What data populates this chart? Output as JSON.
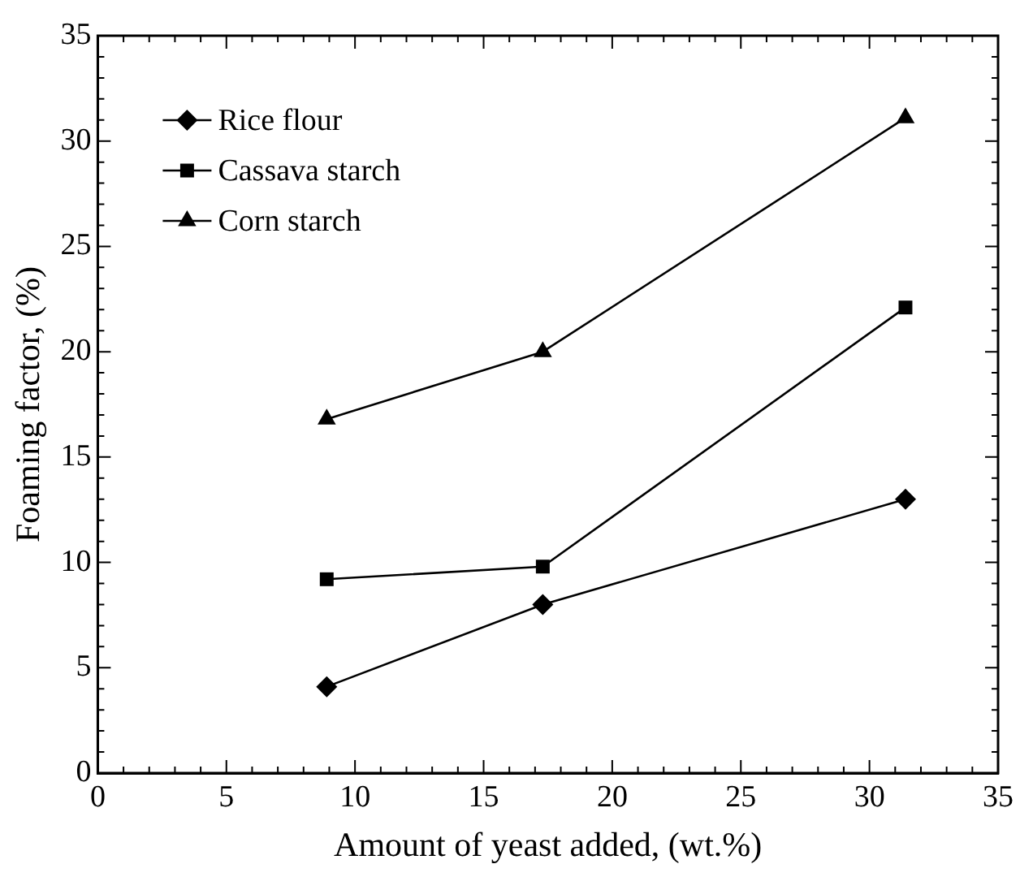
{
  "chart_data": {
    "type": "line",
    "xlabel": "Amount of yeast added, (wt.%)",
    "ylabel": "Foaming factor, (%)",
    "x": [
      8.9,
      17.3,
      31.4
    ],
    "series": [
      {
        "name": "Rice flour",
        "color": "#000000",
        "marker": "diamond",
        "values": [
          4.1,
          8.0,
          13.0
        ]
      },
      {
        "name": "Cassava starch",
        "color": "#000000",
        "marker": "square",
        "values": [
          9.2,
          9.8,
          22.1
        ]
      },
      {
        "name": "Corn starch",
        "color": "#000000",
        "marker": "triangle",
        "values": [
          16.8,
          20.0,
          31.1
        ]
      }
    ],
    "xlim": [
      0,
      35
    ],
    "ylim": [
      0,
      35
    ],
    "xticks": [
      0,
      {
        "value": 1,
        "label": null
      },
      {
        "value": 2,
        "label": null
      },
      {
        "value": 3,
        "label": null
      },
      {
        "value": 4,
        "label": null
      },
      5,
      {
        "value": 6,
        "label": null
      },
      {
        "value": 7,
        "label": null
      },
      {
        "value": 8,
        "label": null
      },
      {
        "value": 9,
        "label": null
      },
      10,
      {
        "value": 11,
        "label": null
      },
      {
        "value": 12,
        "label": null
      },
      {
        "value": 13,
        "label": null
      },
      {
        "value": 14,
        "label": null
      },
      15,
      {
        "value": 16,
        "label": null
      },
      {
        "value": 17,
        "label": null
      },
      {
        "value": 18,
        "label": null
      },
      {
        "value": 19,
        "label": null
      },
      20,
      {
        "value": 21,
        "label": null
      },
      {
        "value": 22,
        "label": null
      },
      {
        "value": 23,
        "label": null
      },
      {
        "value": 24,
        "label": null
      },
      25,
      {
        "value": 26,
        "label": null
      },
      {
        "value": 27,
        "label": null
      },
      {
        "value": 28,
        "label": null
      },
      {
        "value": 29,
        "label": null
      },
      30,
      {
        "value": 31,
        "label": null
      },
      {
        "value": 32,
        "label": null
      },
      {
        "value": 33,
        "label": null
      },
      {
        "value": 34,
        "label": null
      },
      35
    ],
    "yticks": [
      0,
      {
        "value": 1,
        "label": null
      },
      {
        "value": 2,
        "label": null
      },
      {
        "value": 3,
        "label": null
      },
      {
        "value": 4,
        "label": null
      },
      5,
      {
        "value": 6,
        "label": null
      },
      {
        "value": 7,
        "label": null
      },
      {
        "value": 8,
        "label": null
      },
      {
        "value": 9,
        "label": null
      },
      10,
      {
        "value": 11,
        "label": null
      },
      {
        "value": 12,
        "label": null
      },
      {
        "value": 13,
        "label": null
      },
      {
        "value": 14,
        "label": null
      },
      15,
      {
        "value": 16,
        "label": null
      },
      {
        "value": 17,
        "label": null
      },
      {
        "value": 18,
        "label": null
      },
      {
        "value": 19,
        "label": null
      },
      20,
      {
        "value": 21,
        "label": null
      },
      {
        "value": 22,
        "label": null
      },
      {
        "value": 23,
        "label": null
      },
      {
        "value": 24,
        "label": null
      },
      25,
      {
        "value": 26,
        "label": null
      },
      {
        "value": 27,
        "label": null
      },
      {
        "value": 28,
        "label": null
      },
      {
        "value": 29,
        "label": null
      },
      30,
      {
        "value": 31,
        "label": null
      },
      {
        "value": 32,
        "label": null
      },
      {
        "value": 33,
        "label": null
      },
      {
        "value": 34,
        "label": null
      },
      35
    ],
    "grid": false,
    "legend": "top left",
    "line_style": "solid"
  }
}
